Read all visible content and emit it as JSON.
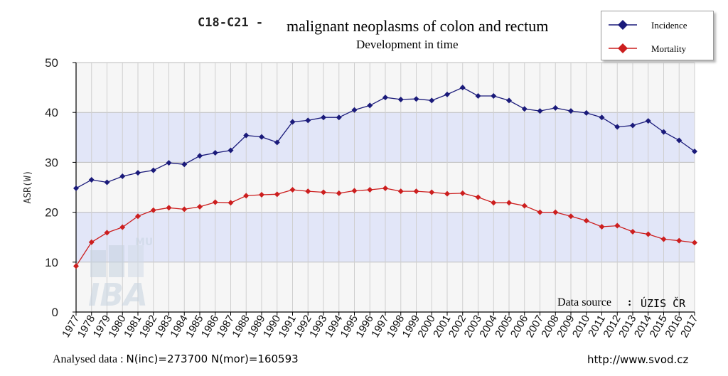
{
  "chart_data": {
    "type": "line",
    "title_code": "C18-C21 -",
    "title": "malignant neoplasms of colon and rectum",
    "subtitle": "Development in time",
    "ylabel": "ASR(W)",
    "ylim": [
      0,
      50
    ],
    "yticks": [
      "0",
      "10",
      "20",
      "30",
      "40",
      "50"
    ],
    "grid": true,
    "legend_position": "top-right",
    "x": [
      "1977",
      "1978",
      "1979",
      "1980",
      "1981",
      "1982",
      "1983",
      "1984",
      "1985",
      "1986",
      "1987",
      "1988",
      "1989",
      "1990",
      "1991",
      "1992",
      "1993",
      "1994",
      "1995",
      "1996",
      "1997",
      "1998",
      "1999",
      "2000",
      "2001",
      "2002",
      "2003",
      "2004",
      "2005",
      "2006",
      "2007",
      "2008",
      "2009",
      "2010",
      "2011",
      "2012",
      "2013",
      "2014",
      "2015",
      "2016",
      "2017"
    ],
    "series": [
      {
        "name": "Incidence",
        "color": "#1a1a7a",
        "values": [
          24.8,
          26.5,
          26.0,
          27.2,
          27.9,
          28.4,
          29.9,
          29.6,
          31.3,
          31.9,
          32.4,
          35.4,
          35.1,
          34.0,
          38.1,
          38.4,
          39.0,
          39.0,
          40.5,
          41.4,
          43.0,
          42.6,
          42.7,
          42.4,
          43.6,
          45.0,
          43.3,
          43.3,
          42.4,
          40.7,
          40.3,
          40.9,
          40.3,
          39.9,
          39.0,
          37.1,
          37.4,
          38.3,
          36.1,
          34.4,
          32.2
        ]
      },
      {
        "name": "Mortality",
        "color": "#cc1e1e",
        "values": [
          9.2,
          14.0,
          15.9,
          17.0,
          19.2,
          20.4,
          20.9,
          20.6,
          21.1,
          22.0,
          21.9,
          23.3,
          23.5,
          23.6,
          24.5,
          24.2,
          24.0,
          23.8,
          24.3,
          24.5,
          24.8,
          24.2,
          24.2,
          24.0,
          23.7,
          23.8,
          23.0,
          21.9,
          21.9,
          21.3,
          20.0,
          20.0,
          19.2,
          18.3,
          17.1,
          17.3,
          16.1,
          15.6,
          14.6,
          14.3,
          13.9
        ]
      }
    ]
  },
  "source": {
    "label": "Data source",
    "separator": ":",
    "value": "ÚZIS ČR"
  },
  "footer": {
    "analysed_label": "Analysed data :",
    "analysed_values": "N(inc)=273700  N(mor)=160593",
    "url": "http://www.svod.cz"
  },
  "watermark": {
    "text": "IBA",
    "small": "MU"
  }
}
